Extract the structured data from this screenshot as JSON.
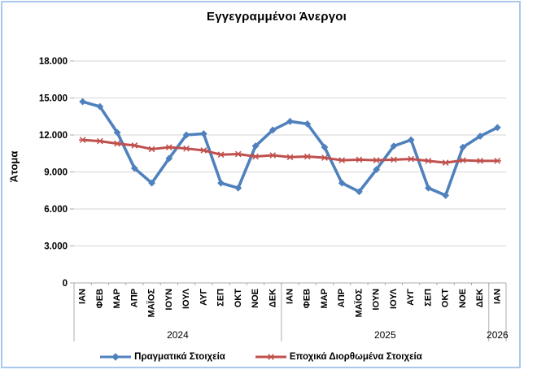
{
  "chart_data": {
    "type": "line",
    "title": "Εγγεγραμμένοι Άνεργοι",
    "ylabel": "Άτομα",
    "ylim": [
      0,
      18000
    ],
    "ytick_step": 3000,
    "ytick_labels": [
      "0",
      "3.000",
      "6.000",
      "9.000",
      "12.000",
      "15.000",
      "18.000"
    ],
    "grid": true,
    "legend_position": "bottom",
    "categories": [
      "ΙΑΝ",
      "ΦΕΒ",
      "ΜΑΡ",
      "ΑΠΡ",
      "ΜΑΪΟΣ",
      "ΙΟΥΝ",
      "ΙΟΥΛ",
      "ΑΥΓ",
      "ΣΕΠ",
      "ΟΚΤ",
      "ΝΟΕ",
      "ΔΕΚ",
      "ΙΑΝ",
      "ΦΕΒ",
      "ΜΑΡ",
      "ΑΠΡ",
      "ΜΑΪΟΣ",
      "ΙΟΥΝ",
      "ΙΟΥΛ",
      "ΑΥΓ",
      "ΣΕΠ",
      "ΟΚΤ",
      "ΝΟΕ",
      "ΔΕΚ",
      "ΙΑΝ"
    ],
    "year_groups": [
      {
        "label": "2024",
        "start": 0,
        "count": 12
      },
      {
        "label": "2025",
        "start": 12,
        "count": 12
      },
      {
        "label": "2026",
        "start": 24,
        "count": 1
      }
    ],
    "series": [
      {
        "name": "Πραγματικά Στοιχεία",
        "color": "#4F81BD",
        "marker": "diamond",
        "values": [
          14700,
          14300,
          12200,
          9300,
          8100,
          10100,
          12000,
          12100,
          8100,
          7700,
          11100,
          12400,
          13100,
          12900,
          11000,
          8100,
          7400,
          9200,
          11100,
          11600,
          7700,
          7100,
          11000,
          11900,
          12600
        ]
      },
      {
        "name": "Εποχικά Διορθωμένα Στοιχεία",
        "color": "#C0504D",
        "marker": "star",
        "values": [
          11600,
          11500,
          11300,
          11150,
          10850,
          11000,
          10900,
          10750,
          10400,
          10450,
          10250,
          10350,
          10200,
          10250,
          10150,
          9950,
          10000,
          9950,
          10000,
          10050,
          9900,
          9750,
          9950,
          9900,
          9900
        ]
      }
    ]
  },
  "colors": {
    "frame_border": "#A9C8EA",
    "gridline": "#D6D6D6",
    "axis": "#ABABAB",
    "text": "#000000"
  }
}
